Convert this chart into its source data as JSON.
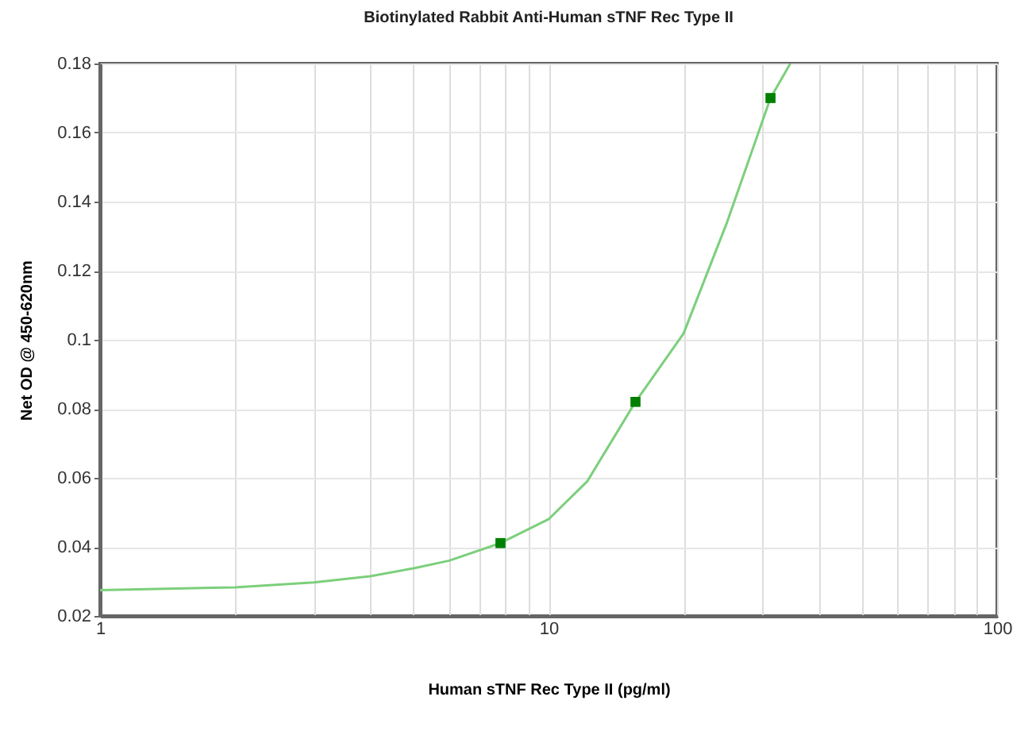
{
  "chart_data": {
    "type": "scatter",
    "title": "Biotinylated Rabbit Anti-Human sTNF Rec Type II",
    "xlabel": "Human sTNF Rec Type II (pg/ml)",
    "ylabel": "Net OD @ 450-620nm",
    "log": "x",
    "grid": true,
    "xlim": [
      1,
      100
    ],
    "ylim": [
      0.02,
      0.18
    ],
    "xticks": [
      1,
      {
        "value": 2,
        "label": null
      },
      {
        "value": 3,
        "label": null
      },
      {
        "value": 4,
        "label": null
      },
      {
        "value": 5,
        "label": null
      },
      {
        "value": 6,
        "label": null
      },
      {
        "value": 7,
        "label": null
      },
      {
        "value": 8,
        "label": null
      },
      {
        "value": 9,
        "label": null
      },
      10,
      {
        "value": 20,
        "label": null
      },
      {
        "value": 30,
        "label": null
      },
      {
        "value": 40,
        "label": null
      },
      {
        "value": 50,
        "label": null
      },
      {
        "value": 60,
        "label": null
      },
      {
        "value": 70,
        "label": null
      },
      {
        "value": 80,
        "label": null
      },
      {
        "value": 90,
        "label": null
      },
      100
    ],
    "yticks": [
      0.02,
      0.04,
      0.06,
      0.08,
      0.1,
      0.12,
      0.14,
      0.16,
      0.18
    ],
    "series": [
      {
        "type": "line",
        "color": "#7ccf7c",
        "marker": "none",
        "line_style": "solid",
        "x": [
          1,
          2,
          3,
          4,
          5,
          6,
          7.8125,
          10,
          12.2,
          15.625,
          20,
          25,
          31.25,
          34.6
        ],
        "values": [
          0.0275,
          0.0283,
          0.0297,
          0.0315,
          0.0338,
          0.036,
          0.0411,
          0.048,
          0.059,
          0.082,
          0.1018,
          0.134,
          0.17,
          0.18
        ]
      },
      {
        "type": "scatter",
        "color": "#008000",
        "marker": "square",
        "x": [
          7.8125,
          15.625,
          31.25
        ],
        "values": [
          0.0411,
          0.082,
          0.17
        ]
      }
    ]
  }
}
